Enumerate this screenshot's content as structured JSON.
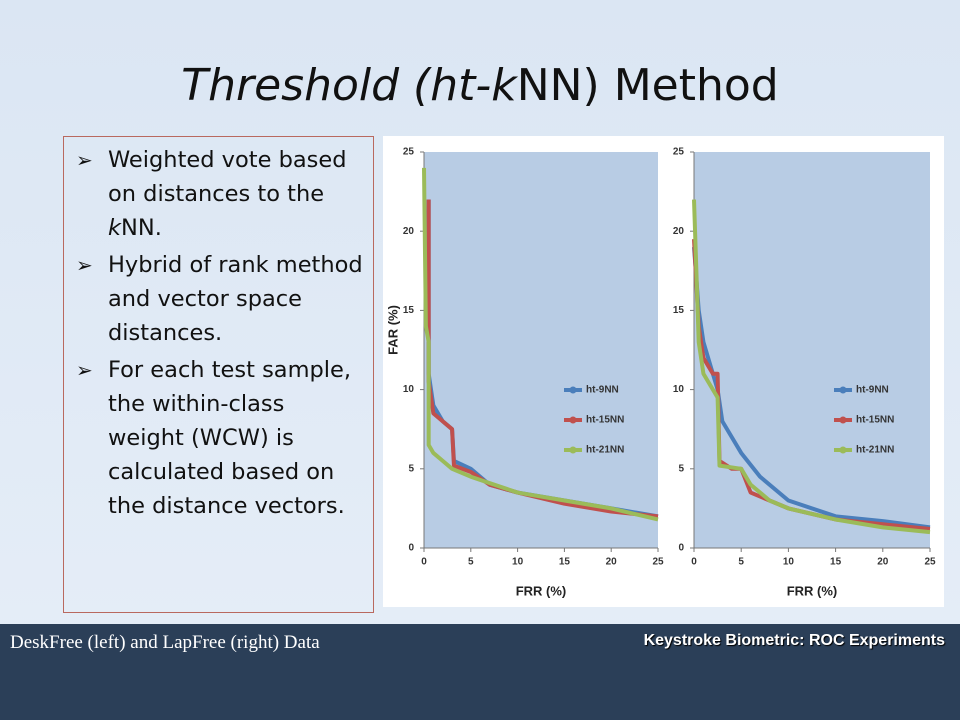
{
  "slide": {
    "title": {
      "italic": "Threshold (ht-k",
      "roman": "NN) Method"
    },
    "bullets": [
      [
        "Weighted vote based on distances to the ",
        "k",
        "NN."
      ],
      [
        "Hybrid of rank method and vector space distances."
      ],
      [
        "For each test sample, the within-class weight (WCW) is calculated based on the distance vectors."
      ]
    ],
    "footer_left": "DeskFree (left) and LapFree (right) Data",
    "footer_right": "Keystroke Biometric: ROC Experiments"
  },
  "chart_data": [
    {
      "type": "line",
      "xlabel": "FRR (%)",
      "ylabel": "FAR (%)",
      "xlim": [
        0,
        25
      ],
      "ylim": [
        0,
        25
      ],
      "xticks": [
        0,
        5,
        10,
        15,
        20,
        25
      ],
      "yticks": [
        0,
        5,
        10,
        15,
        20,
        25
      ],
      "series": [
        {
          "name": "ht-9NN",
          "color": "#4a7ebb",
          "x": [
            0.5,
            0.5,
            1,
            2,
            3,
            3.2,
            5,
            7,
            10,
            15,
            20,
            25
          ],
          "values": [
            22,
            11,
            9,
            8,
            7.5,
            5.5,
            5,
            4,
            3.5,
            3,
            2.5,
            2
          ]
        },
        {
          "name": "ht-15NN",
          "color": "#c0504d",
          "x": [
            0.5,
            0.5,
            1,
            3,
            3.2,
            5,
            7,
            10,
            15,
            20,
            25
          ],
          "values": [
            22,
            10.5,
            8.5,
            7.5,
            5.2,
            4.8,
            4,
            3.5,
            2.8,
            2.3,
            2
          ]
        },
        {
          "name": "ht-21NN",
          "color": "#9bbb59",
          "x": [
            0,
            0.2,
            0.5,
            0.5,
            1,
            2,
            3,
            5,
            10,
            15,
            20,
            25
          ],
          "values": [
            24,
            14,
            13,
            6.5,
            6,
            5.5,
            5,
            4.5,
            3.5,
            3,
            2.5,
            1.8
          ]
        }
      ]
    },
    {
      "type": "line",
      "xlabel": "FRR (%)",
      "ylabel": "FAR (%)",
      "xlim": [
        0,
        25
      ],
      "ylim": [
        0,
        25
      ],
      "xticks": [
        0,
        5,
        10,
        15,
        20,
        25
      ],
      "yticks": [
        0,
        5,
        10,
        15,
        20,
        25
      ],
      "series": [
        {
          "name": "ht-9NN",
          "color": "#4a7ebb",
          "x": [
            0,
            0.5,
            1,
            2,
            2.5,
            3,
            4,
            5,
            7,
            10,
            15,
            20,
            25
          ],
          "values": [
            19,
            15,
            13,
            11,
            10,
            8,
            7,
            6,
            4.5,
            3,
            2,
            1.7,
            1.3
          ]
        },
        {
          "name": "ht-15NN",
          "color": "#c0504d",
          "x": [
            0,
            0.5,
            1,
            2,
            2.5,
            2.7,
            4,
            5,
            6,
            8,
            10,
            15,
            20,
            25
          ],
          "values": [
            19.5,
            14,
            12,
            11,
            11,
            5.5,
            5,
            5,
            3.5,
            3,
            2.5,
            1.8,
            1.5,
            1.2
          ]
        },
        {
          "name": "ht-21NN",
          "color": "#9bbb59",
          "x": [
            0,
            0.5,
            1,
            2,
            2.5,
            2.7,
            5,
            6,
            8,
            10,
            15,
            20,
            25
          ],
          "values": [
            22,
            13,
            11,
            10,
            9.5,
            5.2,
            5,
            4,
            3,
            2.5,
            1.8,
            1.3,
            1
          ]
        }
      ]
    }
  ]
}
